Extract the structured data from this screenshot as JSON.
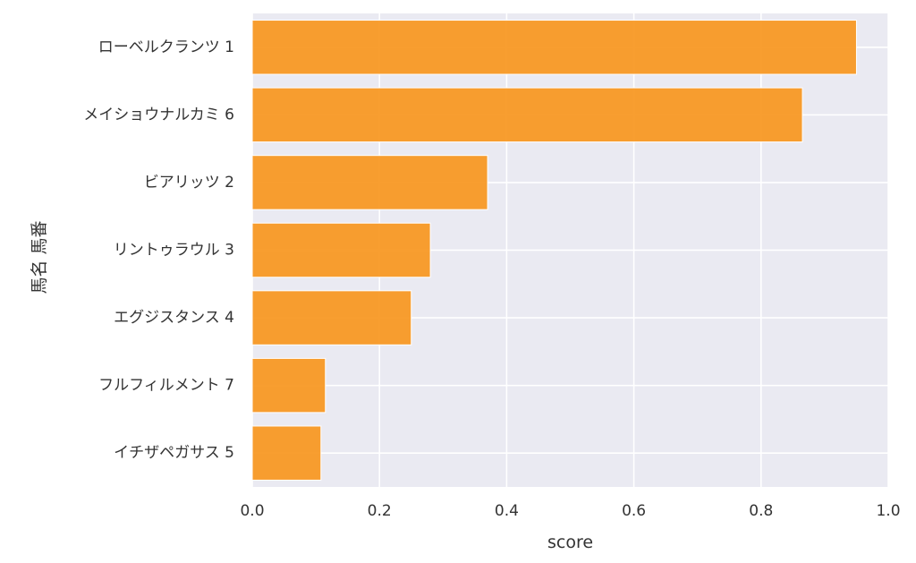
{
  "chart_data": {
    "type": "bar",
    "orientation": "horizontal",
    "categories": [
      "ローベルクランツ 1",
      "メイショウナルカミ 6",
      "ビアリッツ 2",
      "リントゥラウル 3",
      "エグジスタンス 4",
      "フルフィルメント 7",
      "イチザペガサス 5"
    ],
    "values": [
      0.95,
      0.865,
      0.37,
      0.28,
      0.25,
      0.115,
      0.108
    ],
    "xlabel": "score",
    "ylabel": "馬名 馬番",
    "xlim": [
      0.0,
      1.0
    ],
    "xticks": [
      "0.0",
      "0.2",
      "0.4",
      "0.6",
      "0.8",
      "1.0"
    ],
    "grid": true,
    "bar_color": "#f7961e",
    "plot_background": "#eaeaf2",
    "grid_color": "#ffffff"
  }
}
